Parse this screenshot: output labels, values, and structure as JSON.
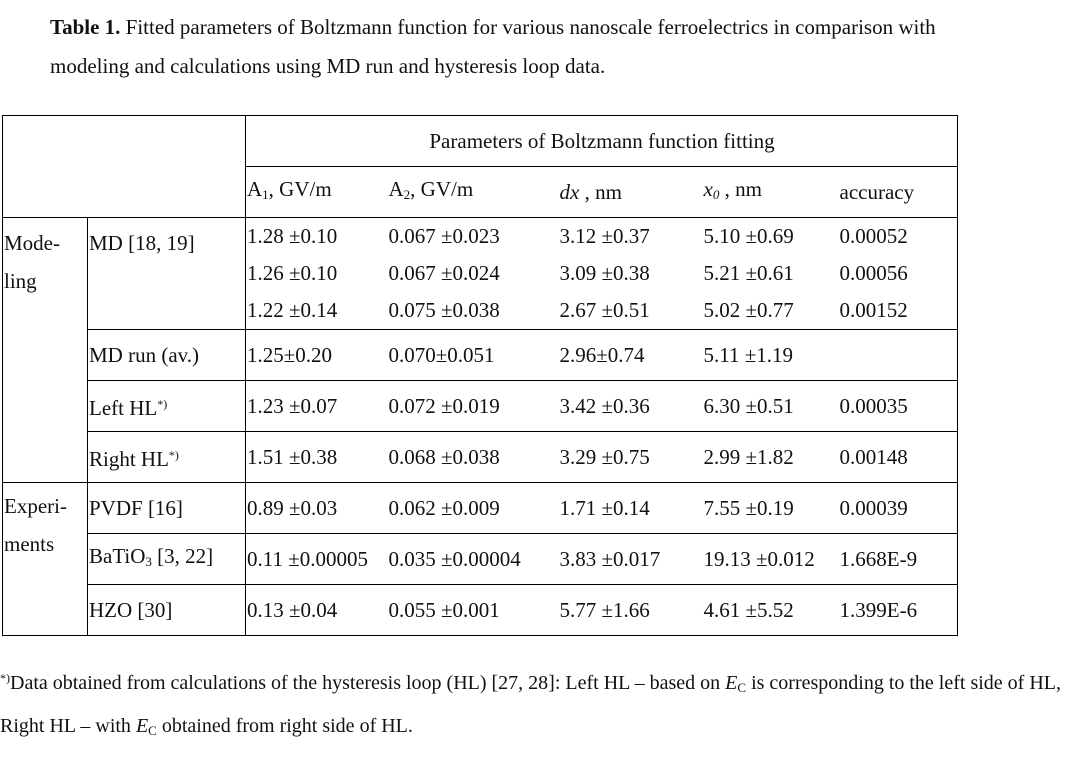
{
  "caption": {
    "label": "Table 1.",
    "text": " Fitted parameters of Boltzmann function for various nanoscale ferroelectrics in comparison with modeling and calculations using MD run and hysteresis loop data."
  },
  "table": {
    "group_header": "Parameters of Boltzmann function fitting",
    "columns": {
      "a1": "A",
      "a1_sub": "1",
      "a1_unit": ", GV/m",
      "a2": "A",
      "a2_sub": "2",
      "a2_unit": ", GV/m",
      "dx": "dx",
      "dx_unit": " , nm",
      "x0": "x",
      "x0_sub": "0",
      "x0_unit": " , nm",
      "accuracy": "accuracy"
    },
    "sections": {
      "modeling": "Mode-\nling",
      "experiments": "Experi-\nments"
    },
    "rows": {
      "md_label": "MD [18, 19]",
      "md": [
        [
          "1.28 ±0.10",
          "0.067 ±0.023",
          "3.12 ±0.37",
          "5.10 ±0.69",
          "0.00052"
        ],
        [
          "1.26 ±0.10",
          "0.067 ±0.024",
          "3.09 ±0.38",
          "5.21 ±0.61",
          "0.00056"
        ],
        [
          "1.22 ±0.14",
          "0.075 ±0.038",
          "2.67 ±0.51",
          "5.02 ±0.77",
          "0.00152"
        ]
      ],
      "mdrun": {
        "label": "MD run (av.)",
        "values": [
          "1.25±0.20",
          "0.070±0.051",
          "2.96±0.74",
          "5.11 ±1.19",
          ""
        ]
      },
      "lefthl": {
        "label": "Left HL",
        "mark": "*)",
        "values": [
          "1.23 ±0.07",
          "0.072 ±0.019",
          "3.42 ±0.36",
          "6.30 ±0.51",
          "0.00035"
        ]
      },
      "righthl": {
        "label": "Right HL",
        "mark": "*)",
        "values": [
          "1.51 ±0.38",
          "0.068 ±0.038",
          "3.29 ±0.75",
          "2.99 ±1.82",
          "0.00148"
        ]
      },
      "pvdf": {
        "label": "PVDF [16]",
        "values": [
          "0.89 ±0.03",
          "0.062 ±0.009",
          "1.71 ±0.14",
          "7.55 ±0.19",
          "0.00039"
        ]
      },
      "batio": {
        "label_pre": "BaTiO",
        "label_sub": "3",
        "label_post": " [3, 22]",
        "values": [
          "0.11 ±0.00005",
          "0.035 ±0.00004",
          "3.83 ±0.017",
          "19.13 ±0.012",
          "1.668E-9"
        ]
      },
      "hzo": {
        "label": "HZO [30]",
        "values": [
          "0.13 ±0.04",
          "0.055 ±0.001",
          "5.77 ±1.66",
          "4.61 ±5.52",
          "1.399E-6"
        ]
      }
    }
  },
  "footnote": {
    "mark": "*)",
    "part1": "Data obtained from calculations of the hysteresis loop (HL) [27, 28]: Left HL – based on ",
    "ec1": "E",
    "ec1_sub": "C",
    "part2": " is corresponding to the left side of HL, Right HL – with ",
    "ec2": "E",
    "ec2_sub": "C",
    "part3": " obtained from right side of HL."
  }
}
